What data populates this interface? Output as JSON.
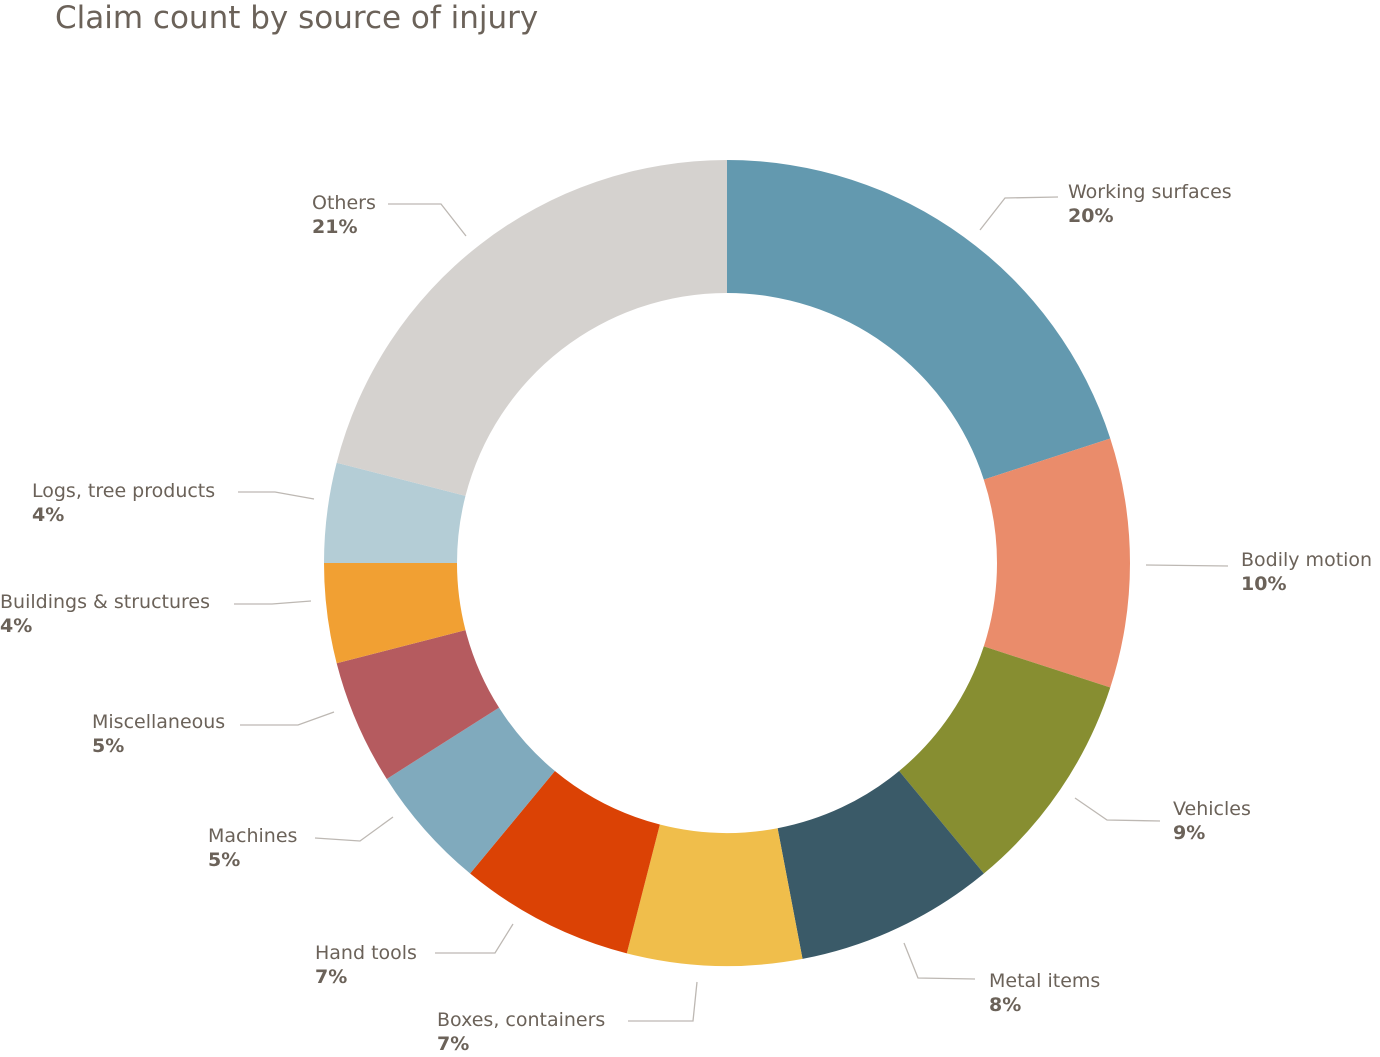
{
  "chart_data": {
    "type": "pie",
    "variant": "donut",
    "title": "Claim count by source of injury",
    "legend": "none (direct labels)",
    "slices": [
      {
        "label": "Working surfaces",
        "value": 20,
        "display": "20%",
        "color": "#6399AF"
      },
      {
        "label": "Bodily motion",
        "value": 10,
        "display": "10%",
        "color": "#EA8C6B"
      },
      {
        "label": "Vehicles",
        "value": 9,
        "display": "9%",
        "color": "#878E31"
      },
      {
        "label": "Metal items",
        "value": 8,
        "display": "8%",
        "color": "#3A5A68"
      },
      {
        "label": "Boxes, containers",
        "value": 7,
        "display": "7%",
        "color": "#F0BE4B"
      },
      {
        "label": "Hand tools",
        "value": 7,
        "display": "7%",
        "color": "#DB4205"
      },
      {
        "label": "Machines",
        "value": 5,
        "display": "5%",
        "color": "#80AABD"
      },
      {
        "label": "Miscellaneous",
        "value": 5,
        "display": "5%",
        "color": "#B55B5F"
      },
      {
        "label": "Buildings & structures",
        "value": 4,
        "display": "4%",
        "color": "#F1A033"
      },
      {
        "label": "Logs, tree products",
        "value": 4,
        "display": "4%",
        "color": "#B4CDD6"
      },
      {
        "label": "Others",
        "value": 21,
        "display": "21%",
        "color": "#D5D2CF"
      }
    ]
  }
}
